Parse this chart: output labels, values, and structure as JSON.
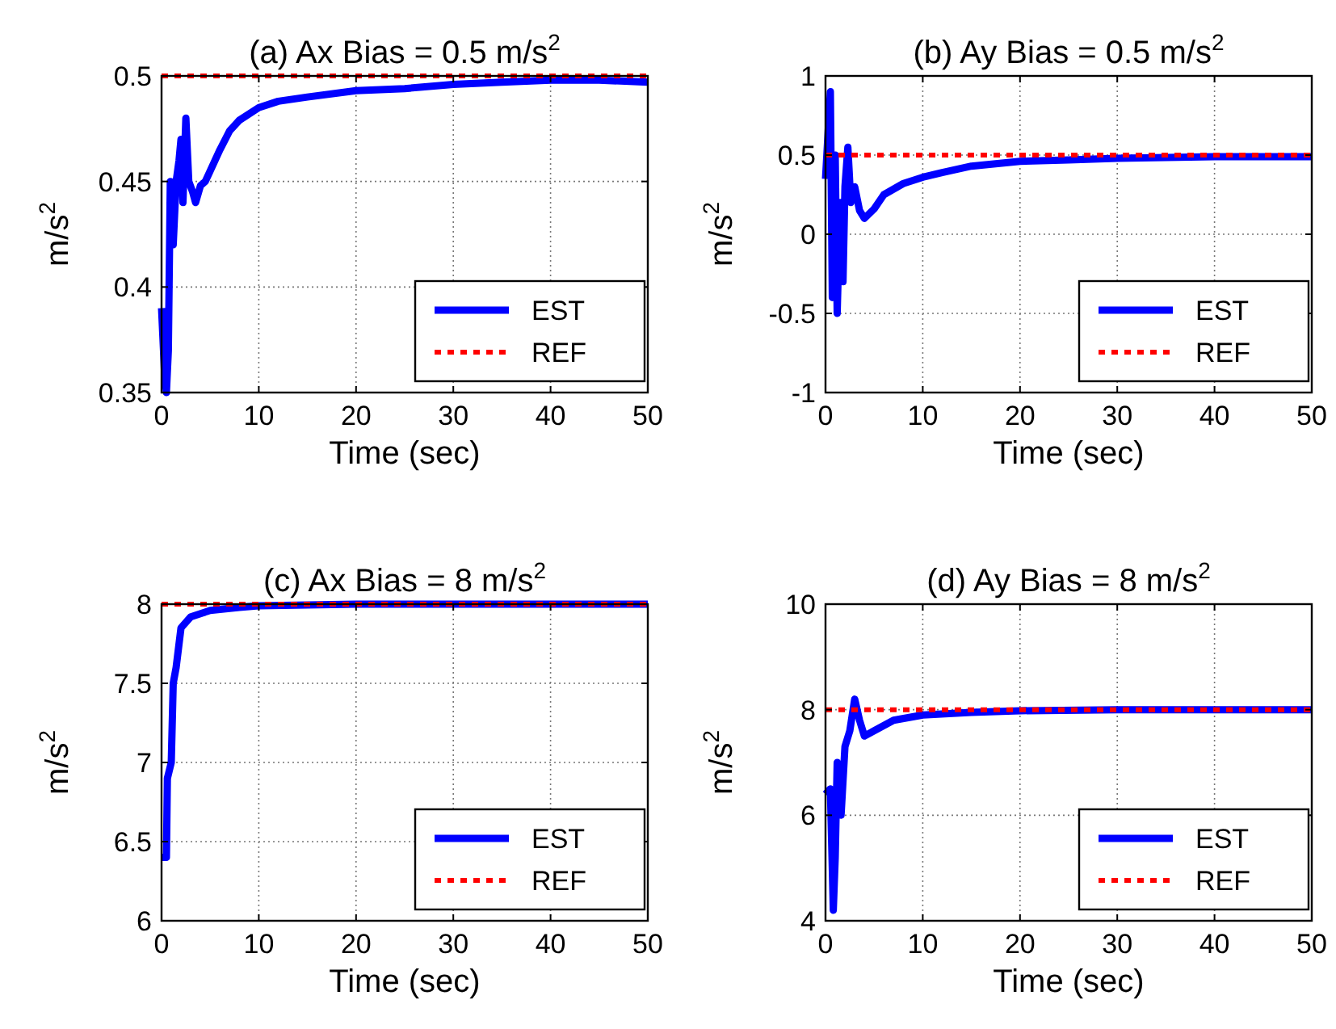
{
  "chart_data": [
    {
      "type": "line",
      "title": "(a) Ax Bias = 0.5 m/s$^{2}$",
      "xlabel": "Time (sec)",
      "ylabel": "m/s$^{2}$",
      "xlim": [
        0,
        50
      ],
      "xticks": [
        0,
        10,
        20,
        30,
        40,
        50
      ],
      "ylim": [
        0.35,
        0.5
      ],
      "yticks": [
        0.35,
        0.4,
        0.45,
        0.5
      ],
      "grid": true,
      "legend": "bottom right",
      "series": [
        {
          "name": "EST",
          "color": "#0000ff",
          "line_style": "solid",
          "x": [
            0,
            0.3,
            0.5,
            0.7,
            0.9,
            1.2,
            1.5,
            1.8,
            2,
            2.2,
            2.5,
            2.8,
            3.2,
            3.5,
            4,
            4.5,
            5,
            6,
            7,
            8,
            10,
            12,
            15,
            20,
            25,
            30,
            35,
            40,
            45,
            50
          ],
          "values": [
            0.39,
            0.36,
            0.35,
            0.37,
            0.45,
            0.42,
            0.45,
            0.46,
            0.47,
            0.44,
            0.48,
            0.45,
            0.445,
            0.44,
            0.448,
            0.45,
            0.455,
            0.465,
            0.474,
            0.479,
            0.485,
            0.488,
            0.49,
            0.493,
            0.494,
            0.496,
            0.497,
            0.498,
            0.498,
            0.497
          ]
        },
        {
          "name": "REF",
          "color": "#ff0000",
          "line_style": "dotted",
          "x": [
            0,
            50
          ],
          "values": [
            0.5,
            0.5
          ]
        }
      ]
    },
    {
      "type": "line",
      "title": "(b) Ay Bias = 0.5 m/s$^{2}$",
      "xlabel": "Time (sec)",
      "ylabel": "m/s$^{2}$",
      "xlim": [
        0,
        50
      ],
      "xticks": [
        0,
        10,
        20,
        30,
        40,
        50
      ],
      "ylim": [
        -1,
        1
      ],
      "yticks": [
        -1,
        -0.5,
        0,
        0.5,
        1
      ],
      "grid": true,
      "legend": "bottom right",
      "series": [
        {
          "name": "EST",
          "color": "#0000ff",
          "line_style": "solid",
          "x": [
            0,
            0.5,
            0.7,
            1,
            1.2,
            1.5,
            1.8,
            2,
            2.3,
            2.6,
            3,
            3.5,
            4,
            5,
            6,
            8,
            10,
            12,
            15,
            20,
            25,
            30,
            40,
            50
          ],
          "values": [
            0.35,
            0.9,
            -0.4,
            0.5,
            -0.5,
            0.2,
            -0.3,
            0.3,
            0.55,
            0.2,
            0.3,
            0.15,
            0.1,
            0.16,
            0.25,
            0.32,
            0.36,
            0.39,
            0.43,
            0.46,
            0.47,
            0.48,
            0.49,
            0.49
          ]
        },
        {
          "name": "REF",
          "color": "#ff0000",
          "line_style": "dotted",
          "x": [
            0,
            50
          ],
          "values": [
            0.5,
            0.5
          ]
        }
      ]
    },
    {
      "type": "line",
      "title": "(c) Ax Bias = 8 m/s$^{2}$",
      "xlabel": "Time (sec)",
      "ylabel": "m/s$^{2}$",
      "xlim": [
        0,
        50
      ],
      "xticks": [
        0,
        10,
        20,
        30,
        40,
        50
      ],
      "ylim": [
        6,
        8
      ],
      "yticks": [
        6,
        6.5,
        7,
        7.5,
        8
      ],
      "grid": true,
      "legend": "bottom right",
      "series": [
        {
          "name": "EST",
          "color": "#0000ff",
          "line_style": "solid",
          "x": [
            0,
            0.5,
            0.6,
            1,
            1.2,
            1.5,
            2,
            3,
            5,
            8,
            10,
            20,
            50
          ],
          "values": [
            6.4,
            6.4,
            6.9,
            7.0,
            7.5,
            7.6,
            7.85,
            7.92,
            7.96,
            7.98,
            7.99,
            8.0,
            8.0
          ]
        },
        {
          "name": "REF",
          "color": "#ff0000",
          "line_style": "dotted",
          "x": [
            0,
            50
          ],
          "values": [
            8,
            8
          ]
        }
      ]
    },
    {
      "type": "line",
      "title": "(d) Ay Bias = 8 m/s$^{2}$",
      "xlabel": "Time (sec)",
      "ylabel": "m/s$^{2}$",
      "xlim": [
        0,
        50
      ],
      "xticks": [
        0,
        10,
        20,
        30,
        40,
        50
      ],
      "ylim": [
        4,
        10
      ],
      "yticks": [
        4,
        6,
        8,
        10
      ],
      "grid": true,
      "legend": "bottom right",
      "series": [
        {
          "name": "EST",
          "color": "#0000ff",
          "line_style": "solid",
          "x": [
            0,
            0.5,
            0.8,
            1,
            1.2,
            1.6,
            2,
            2.5,
            3,
            3.5,
            4,
            5,
            7,
            10,
            15,
            20,
            30,
            50
          ],
          "values": [
            6.4,
            6.5,
            4.2,
            5.2,
            7.0,
            6.0,
            7.3,
            7.6,
            8.2,
            7.8,
            7.5,
            7.6,
            7.8,
            7.9,
            7.95,
            7.98,
            8.0,
            8.0
          ]
        },
        {
          "name": "REF",
          "color": "#ff0000",
          "line_style": "dotted",
          "x": [
            0,
            50
          ],
          "values": [
            8,
            8
          ]
        }
      ]
    }
  ]
}
